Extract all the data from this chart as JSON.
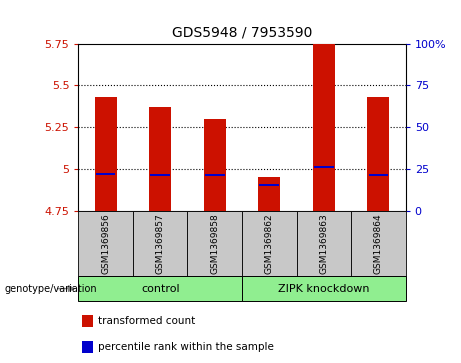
{
  "title": "GDS5948 / 7953590",
  "samples": [
    "GSM1369856",
    "GSM1369857",
    "GSM1369858",
    "GSM1369862",
    "GSM1369863",
    "GSM1369864"
  ],
  "transformed_counts": [
    5.43,
    5.37,
    5.3,
    4.95,
    5.75,
    5.43
  ],
  "percentile_ranks": [
    22,
    21,
    21,
    15,
    26,
    21
  ],
  "bar_bottom": 4.75,
  "ylim_left": [
    4.75,
    5.75
  ],
  "ylim_right": [
    0,
    100
  ],
  "yticks_left": [
    4.75,
    5.0,
    5.25,
    5.5,
    5.75
  ],
  "ytick_labels_left": [
    "4.75",
    "5",
    "5.25",
    "5.5",
    "5.75"
  ],
  "yticks_right": [
    0,
    25,
    50,
    75,
    100
  ],
  "ytick_labels_right": [
    "0",
    "25",
    "50",
    "75",
    "100%"
  ],
  "gridlines": [
    5.0,
    5.25,
    5.5
  ],
  "groups": [
    {
      "label": "control",
      "start": 0,
      "end": 2,
      "color": "#90EE90"
    },
    {
      "label": "ZIPK knockdown",
      "start": 3,
      "end": 5,
      "color": "#90EE90"
    }
  ],
  "bar_color": "#CC1100",
  "percentile_color": "#0000CC",
  "bg_color": "#C8C8C8",
  "plot_bg": "#FFFFFF",
  "legend_items": [
    {
      "label": "transformed count",
      "color": "#CC1100"
    },
    {
      "label": "percentile rank within the sample",
      "color": "#0000CC"
    }
  ],
  "genotype_label": "genotype/variation"
}
